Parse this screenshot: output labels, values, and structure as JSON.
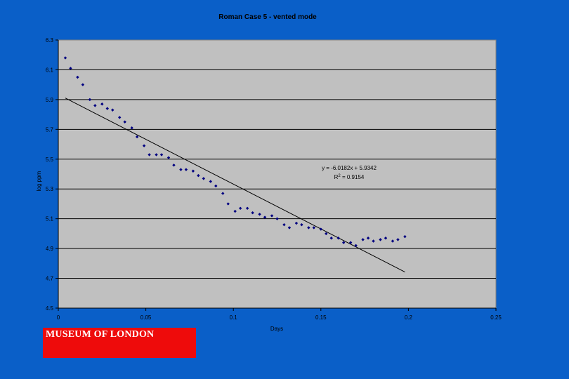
{
  "chart_data": {
    "type": "scatter",
    "title": "Roman Case 5 - vented mode",
    "xlabel": "Days",
    "ylabel": "log ppm",
    "xlim": [
      0,
      0.25
    ],
    "ylim": [
      4.5,
      6.3
    ],
    "x_ticks": [
      "0",
      "0.05",
      "0.1",
      "0.15",
      "0.2",
      "0.25"
    ],
    "y_ticks": [
      "4.5",
      "4.7",
      "4.9",
      "5.1",
      "5.3",
      "5.5",
      "5.7",
      "5.9",
      "6.1",
      "6.3"
    ],
    "grid": true,
    "colors": {
      "plot_area": "#c0c0c0",
      "points": "#000080",
      "background": "#0a5fc8"
    },
    "points": [
      {
        "x": 0.004,
        "y": 6.18
      },
      {
        "x": 0.007,
        "y": 6.11
      },
      {
        "x": 0.011,
        "y": 6.05
      },
      {
        "x": 0.014,
        "y": 6.0
      },
      {
        "x": 0.018,
        "y": 5.9
      },
      {
        "x": 0.021,
        "y": 5.86
      },
      {
        "x": 0.025,
        "y": 5.87
      },
      {
        "x": 0.028,
        "y": 5.84
      },
      {
        "x": 0.031,
        "y": 5.83
      },
      {
        "x": 0.035,
        "y": 5.78
      },
      {
        "x": 0.038,
        "y": 5.75
      },
      {
        "x": 0.042,
        "y": 5.71
      },
      {
        "x": 0.045,
        "y": 5.65
      },
      {
        "x": 0.049,
        "y": 5.59
      },
      {
        "x": 0.052,
        "y": 5.53
      },
      {
        "x": 0.056,
        "y": 5.53
      },
      {
        "x": 0.059,
        "y": 5.53
      },
      {
        "x": 0.063,
        "y": 5.51
      },
      {
        "x": 0.066,
        "y": 5.46
      },
      {
        "x": 0.07,
        "y": 5.43
      },
      {
        "x": 0.073,
        "y": 5.43
      },
      {
        "x": 0.077,
        "y": 5.42
      },
      {
        "x": 0.08,
        "y": 5.39
      },
      {
        "x": 0.083,
        "y": 5.37
      },
      {
        "x": 0.087,
        "y": 5.35
      },
      {
        "x": 0.09,
        "y": 5.32
      },
      {
        "x": 0.094,
        "y": 5.27
      },
      {
        "x": 0.097,
        "y": 5.2
      },
      {
        "x": 0.101,
        "y": 5.15
      },
      {
        "x": 0.104,
        "y": 5.17
      },
      {
        "x": 0.108,
        "y": 5.17
      },
      {
        "x": 0.111,
        "y": 5.14
      },
      {
        "x": 0.115,
        "y": 5.13
      },
      {
        "x": 0.118,
        "y": 5.11
      },
      {
        "x": 0.122,
        "y": 5.12
      },
      {
        "x": 0.125,
        "y": 5.1
      },
      {
        "x": 0.129,
        "y": 5.06
      },
      {
        "x": 0.132,
        "y": 5.04
      },
      {
        "x": 0.136,
        "y": 5.07
      },
      {
        "x": 0.139,
        "y": 5.06
      },
      {
        "x": 0.143,
        "y": 5.04
      },
      {
        "x": 0.146,
        "y": 5.04
      },
      {
        "x": 0.15,
        "y": 5.03
      },
      {
        "x": 0.153,
        "y": 5.0
      },
      {
        "x": 0.156,
        "y": 4.97
      },
      {
        "x": 0.16,
        "y": 4.97
      },
      {
        "x": 0.163,
        "y": 4.94
      },
      {
        "x": 0.167,
        "y": 4.94
      },
      {
        "x": 0.17,
        "y": 4.92
      },
      {
        "x": 0.174,
        "y": 4.96
      },
      {
        "x": 0.177,
        "y": 4.97
      },
      {
        "x": 0.18,
        "y": 4.95
      },
      {
        "x": 0.184,
        "y": 4.96
      },
      {
        "x": 0.187,
        "y": 4.97
      },
      {
        "x": 0.191,
        "y": 4.95
      },
      {
        "x": 0.194,
        "y": 4.96
      },
      {
        "x": 0.198,
        "y": 4.98
      }
    ],
    "trendline": {
      "slope": -6.0182,
      "intercept": 5.9342,
      "x_start": 0.004,
      "x_end": 0.198,
      "equation_label": "y = -6.0182x + 5.9342",
      "r2_prefix": "R",
      "r2_sup": "2",
      "r2_value": " = 0.9154"
    }
  },
  "branding": {
    "label": "MUSEUM OF LONDON",
    "color": "#ee0b0b"
  }
}
